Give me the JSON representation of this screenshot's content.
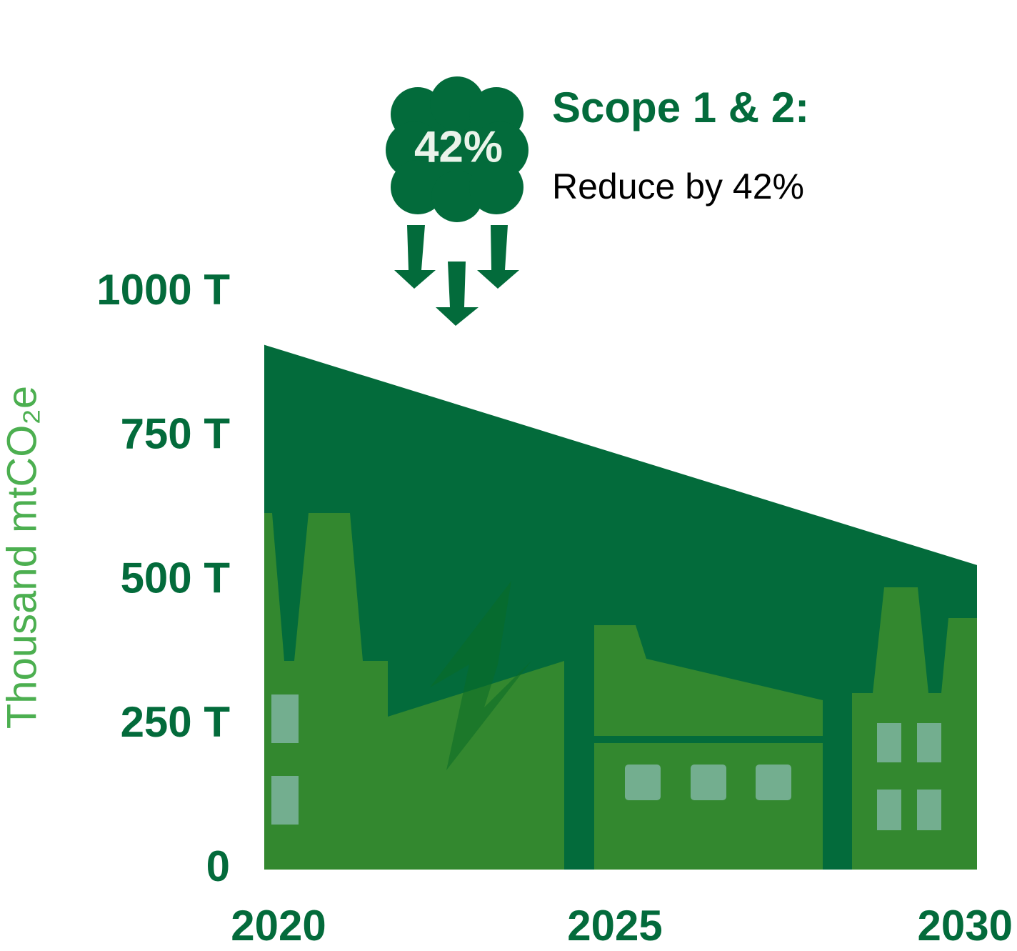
{
  "chart_data": {
    "type": "area",
    "x": [
      2020,
      2030
    ],
    "values": [
      910,
      528
    ],
    "color": "#036b3b",
    "xlim": [
      2020,
      2030
    ],
    "xticks": [
      2020,
      2025,
      2030
    ],
    "ylim": [
      0,
      1000
    ],
    "yticks": [
      0,
      {
        "value": 250,
        "label": "250 T"
      },
      {
        "value": 500,
        "label": "500 T"
      },
      {
        "value": 750,
        "label": "750 T"
      },
      {
        "value": 1000,
        "label": "1000 T"
      }
    ],
    "y_label": "Thousand mtCO₂e",
    "annotation": {
      "badge": "42%",
      "title": "Scope 1 & 2:",
      "text": "Reduce by 42%"
    },
    "grid": false
  }
}
